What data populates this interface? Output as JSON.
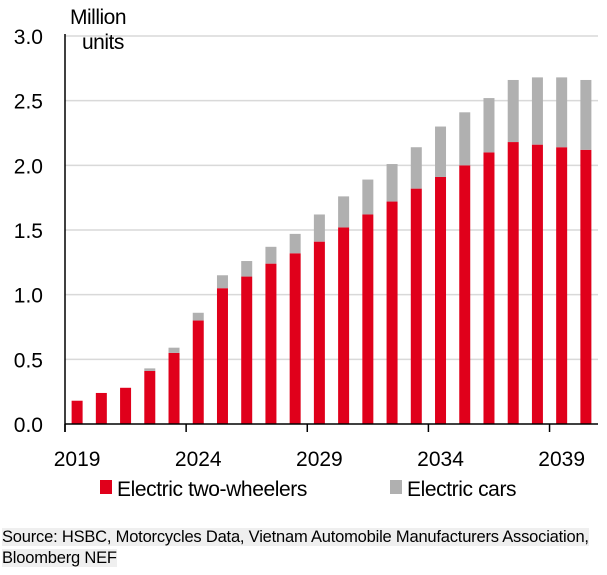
{
  "chart_data": {
    "type": "bar",
    "stacked": true,
    "title": "",
    "ylabel": "Million units",
    "xlabel": "",
    "ylim": [
      0,
      3.0
    ],
    "yticks": [
      "0.0",
      "0.5",
      "1.0",
      "1.5",
      "2.0",
      "2.5",
      "3.0"
    ],
    "xtick_labels": [
      "2019",
      "2024",
      "2029",
      "2034",
      "2039"
    ],
    "grid": "horizontal",
    "legend_position": "bottom",
    "categories": [
      "2019",
      "2020",
      "2021",
      "2022",
      "2023",
      "2024",
      "2025",
      "2026",
      "2027",
      "2028",
      "2029",
      "2030",
      "2031",
      "2032",
      "2033",
      "2034",
      "2035",
      "2036",
      "2037",
      "2038",
      "2039",
      "2040"
    ],
    "series": [
      {
        "name": "Electric two-wheelers",
        "color": "#e0001b",
        "values": [
          0.18,
          0.24,
          0.28,
          0.41,
          0.55,
          0.8,
          1.05,
          1.14,
          1.24,
          1.32,
          1.41,
          1.52,
          1.62,
          1.72,
          1.82,
          1.91,
          2.0,
          2.1,
          2.18,
          2.16,
          2.14,
          2.12
        ]
      },
      {
        "name": "Electric cars",
        "color": "#b0b0b0",
        "values": [
          0.0,
          0.0,
          0.0,
          0.02,
          0.04,
          0.06,
          0.1,
          0.12,
          0.13,
          0.15,
          0.21,
          0.24,
          0.27,
          0.29,
          0.32,
          0.39,
          0.41,
          0.42,
          0.48,
          0.52,
          0.54,
          0.54
        ]
      }
    ]
  },
  "source": "Source: HSBC, Motorcycles Data, Vietnam Automobile Manufacturers Association, Bloomberg NEF"
}
